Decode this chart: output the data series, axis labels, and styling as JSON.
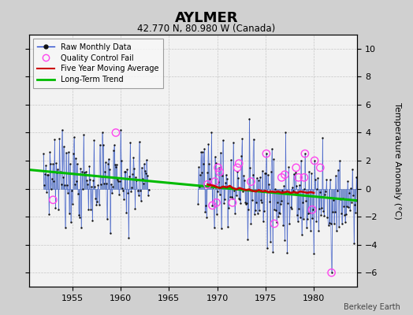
{
  "title": "AYLMER",
  "subtitle": "42.770 N, 80.980 W (Canada)",
  "ylabel": "Temperature Anomaly (°C)",
  "credit": "Berkeley Earth",
  "xlim": [
    1950.5,
    1984.5
  ],
  "ylim": [
    -7,
    11
  ],
  "yticks": [
    -6,
    -4,
    -2,
    0,
    2,
    4,
    6,
    8,
    10
  ],
  "xticks": [
    1955,
    1960,
    1965,
    1970,
    1975,
    1980
  ],
  "trend_x": [
    1950.5,
    1984.5
  ],
  "trend_y": [
    1.35,
    -0.85
  ],
  "moving_avg_x": [
    1969.0,
    1969.3,
    1969.7,
    1970.0,
    1970.3,
    1970.6,
    1971.0,
    1971.3,
    1971.6,
    1972.0,
    1972.3,
    1972.7,
    1973.0,
    1973.3,
    1973.6,
    1974.0,
    1974.3,
    1974.7,
    1975.0,
    1975.3,
    1975.6,
    1976.0,
    1976.3,
    1976.7,
    1977.0,
    1977.3,
    1977.6,
    1978.0,
    1978.3,
    1978.6,
    1979.0,
    1979.3,
    1979.7,
    1980.0
  ],
  "moving_avg_y": [
    0.3,
    0.25,
    0.2,
    0.1,
    0.05,
    0.15,
    0.1,
    0.2,
    0.05,
    -0.05,
    0.05,
    -0.05,
    -0.1,
    -0.05,
    -0.15,
    -0.2,
    -0.1,
    -0.2,
    -0.15,
    -0.25,
    -0.2,
    -0.25,
    -0.2,
    -0.3,
    -0.25,
    -0.2,
    -0.3,
    -0.25,
    -0.3,
    -0.2,
    -0.25,
    -0.3,
    -0.25,
    -0.3
  ]
}
